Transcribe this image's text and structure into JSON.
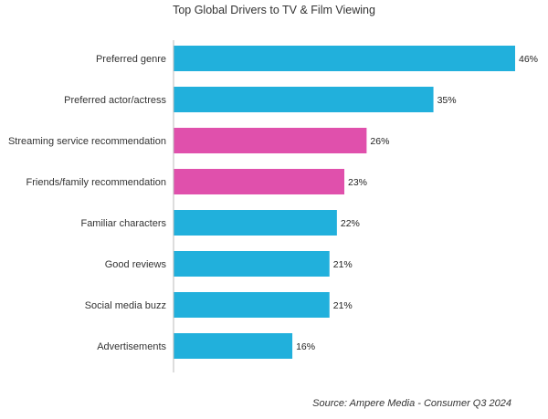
{
  "colors": {
    "primary_bar": "#21b0dc",
    "highlight_bar": "#e050ac",
    "axis": "#bbbbbb",
    "text": "#333333"
  },
  "chart_data": {
    "type": "bar",
    "orientation": "horizontal",
    "title": "Top Global Drivers to TV & Film Viewing",
    "source": "Source: Ampere Media - Consumer Q3 2024",
    "value_suffix": "%",
    "xlim": [
      0,
      46
    ],
    "grid": false,
    "legend": false,
    "categories": [
      "Preferred genre",
      "Preferred actor/actress",
      "Streaming service recommendation",
      "Friends/family recommendation",
      "Familiar characters",
      "Good reviews",
      "Social media buzz",
      "Advertisements"
    ],
    "values": [
      46,
      35,
      26,
      23,
      22,
      21,
      21,
      16
    ],
    "highlighted": [
      false,
      false,
      true,
      true,
      false,
      false,
      false,
      false
    ]
  }
}
